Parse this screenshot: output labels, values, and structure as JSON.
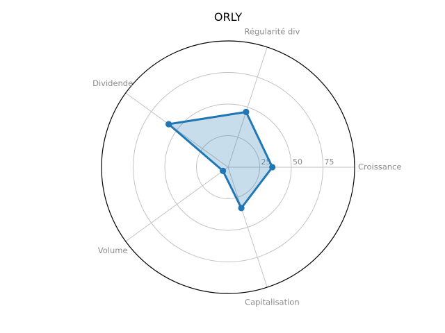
{
  "chart_data": {
    "type": "radar",
    "title": "ORLY",
    "categories": [
      "Croissance",
      "Régularité div",
      "Dividende",
      "Volume",
      "Capitalisation"
    ],
    "values": [
      35,
      46,
      58,
      5,
      34
    ],
    "r_ticks": [
      25,
      50,
      75
    ],
    "r_max": 100,
    "start_angle_deg": 0,
    "direction": "counterclockwise",
    "grid": true,
    "legend": false,
    "colors": {
      "series_line": "#1f77b4",
      "series_fill": "#1f77b4",
      "series_fill_opacity": 0.25,
      "grid_line": "#c3c3c3",
      "outer_ring": "#000000",
      "axis_label": "#8c8c8c",
      "tick_label": "#8c8c8c",
      "title": "#000000",
      "background": "#ffffff"
    }
  }
}
